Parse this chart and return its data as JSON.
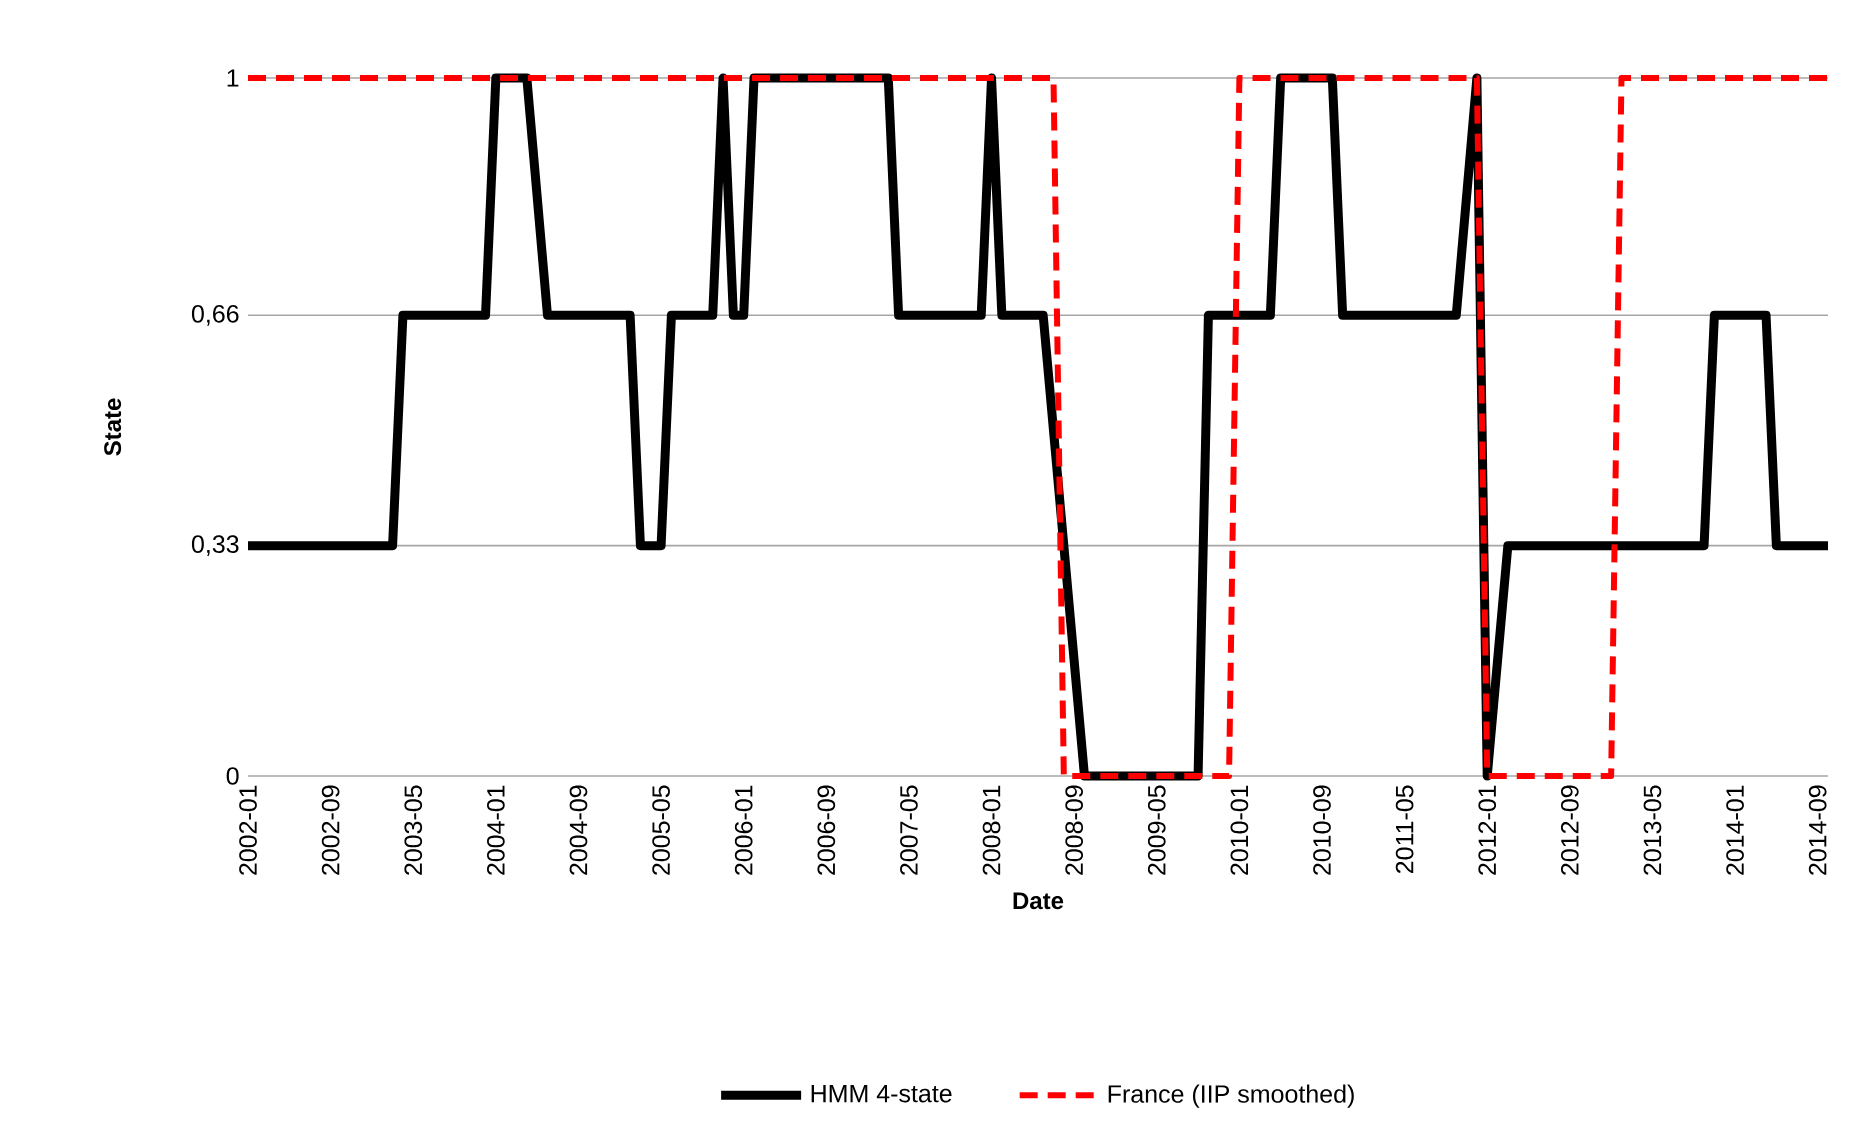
{
  "chart_data": {
    "type": "line",
    "xlabel": "Date",
    "ylabel": "State",
    "xlim": [
      "2002-01",
      "2014-10"
    ],
    "xticks": [
      "2002-01",
      "2002-09",
      "2003-05",
      "2004-01",
      "2004-09",
      "2005-05",
      "2006-01",
      "2006-09",
      "2007-05",
      "2008-01",
      "2008-09",
      "2009-05",
      "2010-01",
      "2010-09",
      "2011-05",
      "2012-01",
      "2012-09",
      "2013-05",
      "2014-01",
      "2014-09"
    ],
    "ylim": [
      0,
      1
    ],
    "yticks": [
      0,
      {
        "value": 0.33,
        "label": "0,33"
      },
      {
        "value": 0.66,
        "label": "0,66"
      },
      1
    ],
    "grid": "y",
    "legend": "bottom",
    "marker": "none",
    "series": [
      {
        "name": "HMM 4-state",
        "color": "#000000",
        "line_style": "solid",
        "x": [
          "2002-01",
          "2003-03",
          "2003-04",
          "2003-12",
          "2004-01",
          "2004-04",
          "2004-06",
          "2005-02",
          "2005-03",
          "2005-05",
          "2005-06",
          "2005-10",
          "2005-11",
          "2005-12",
          "2006-01",
          "2006-02",
          "2007-03",
          "2007-04",
          "2007-12",
          "2008-01",
          "2008-02",
          "2008-06",
          "2008-08",
          "2008-10",
          "2009-09",
          "2009-10",
          "2010-04",
          "2010-05",
          "2010-10",
          "2010-11",
          "2011-10",
          "2011-12",
          "2012-01",
          "2012-03",
          "2013-10",
          "2013-11",
          "2014-04",
          "2014-05",
          "2014-10"
        ],
        "values": [
          0.33,
          0.33,
          0.66,
          0.66,
          1,
          1,
          0.66,
          0.66,
          0.33,
          0.33,
          0.66,
          0.66,
          1,
          0.66,
          0.66,
          1,
          1,
          0.66,
          0.66,
          1,
          0.66,
          0.66,
          0.33,
          0,
          0,
          0.66,
          0.66,
          1,
          1,
          0.66,
          0.66,
          1,
          0,
          0.33,
          0.33,
          0.66,
          0.66,
          0.33,
          0.33
        ]
      },
      {
        "name": "France (IIP smoothed)",
        "color": "#ff0000",
        "line_style": "dashed",
        "x": [
          "2002-01",
          "2008-07",
          "2008-08",
          "2009-12",
          "2010-01",
          "2011-12",
          "2012-01",
          "2013-01",
          "2013-02",
          "2014-10"
        ],
        "values": [
          1,
          1,
          0,
          0,
          1,
          1,
          0,
          0,
          1,
          1
        ]
      }
    ]
  }
}
